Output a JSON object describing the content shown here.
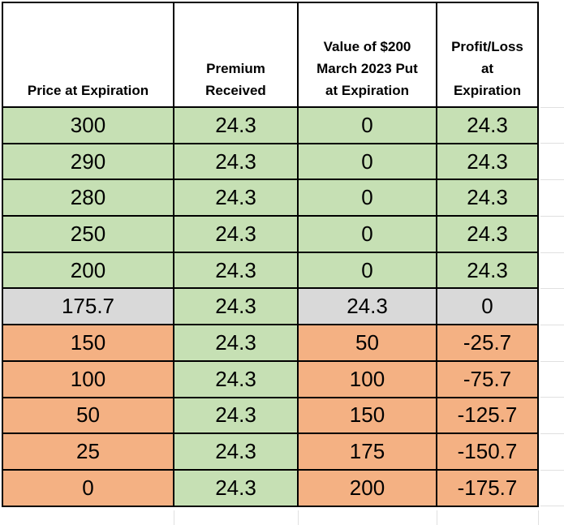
{
  "colors": {
    "profit_fill": "#C6E0B4",
    "breakeven_fill": "#D9D9D9",
    "loss_fill": "#F4B183",
    "premium_column_fill": "#C6E0B4",
    "cell_border": "#000000",
    "sheet_gridline": "#E0E0E0",
    "text": "#000000",
    "background": "#FFFFFF"
  },
  "table": {
    "columns": [
      {
        "id": "price",
        "header_lines": [
          "Price at Expiration"
        ]
      },
      {
        "id": "premium",
        "header_lines": [
          "Premium",
          "Received"
        ]
      },
      {
        "id": "put_value",
        "header_lines": [
          "Value of $200",
          "March 2023 Put",
          "at Expiration"
        ]
      },
      {
        "id": "profit_loss",
        "header_lines": [
          "Profit/Loss",
          "at",
          "Expiration"
        ]
      }
    ],
    "rows": [
      {
        "price": "300",
        "premium": "24.3",
        "put_value": "0",
        "profit_loss": "24.3",
        "zone": "profit"
      },
      {
        "price": "290",
        "premium": "24.3",
        "put_value": "0",
        "profit_loss": "24.3",
        "zone": "profit"
      },
      {
        "price": "280",
        "premium": "24.3",
        "put_value": "0",
        "profit_loss": "24.3",
        "zone": "profit"
      },
      {
        "price": "250",
        "premium": "24.3",
        "put_value": "0",
        "profit_loss": "24.3",
        "zone": "profit"
      },
      {
        "price": "200",
        "premium": "24.3",
        "put_value": "0",
        "profit_loss": "24.3",
        "zone": "profit"
      },
      {
        "price": "175.7",
        "premium": "24.3",
        "put_value": "24.3",
        "profit_loss": "0",
        "zone": "breakeven"
      },
      {
        "price": "150",
        "premium": "24.3",
        "put_value": "50",
        "profit_loss": "-25.7",
        "zone": "loss"
      },
      {
        "price": "100",
        "premium": "24.3",
        "put_value": "100",
        "profit_loss": "-75.7",
        "zone": "loss"
      },
      {
        "price": "50",
        "premium": "24.3",
        "put_value": "150",
        "profit_loss": "-125.7",
        "zone": "loss"
      },
      {
        "price": "25",
        "premium": "24.3",
        "put_value": "175",
        "profit_loss": "-150.7",
        "zone": "loss"
      },
      {
        "price": "0",
        "premium": "24.3",
        "put_value": "200",
        "profit_loss": "-175.7",
        "zone": "loss"
      }
    ]
  }
}
